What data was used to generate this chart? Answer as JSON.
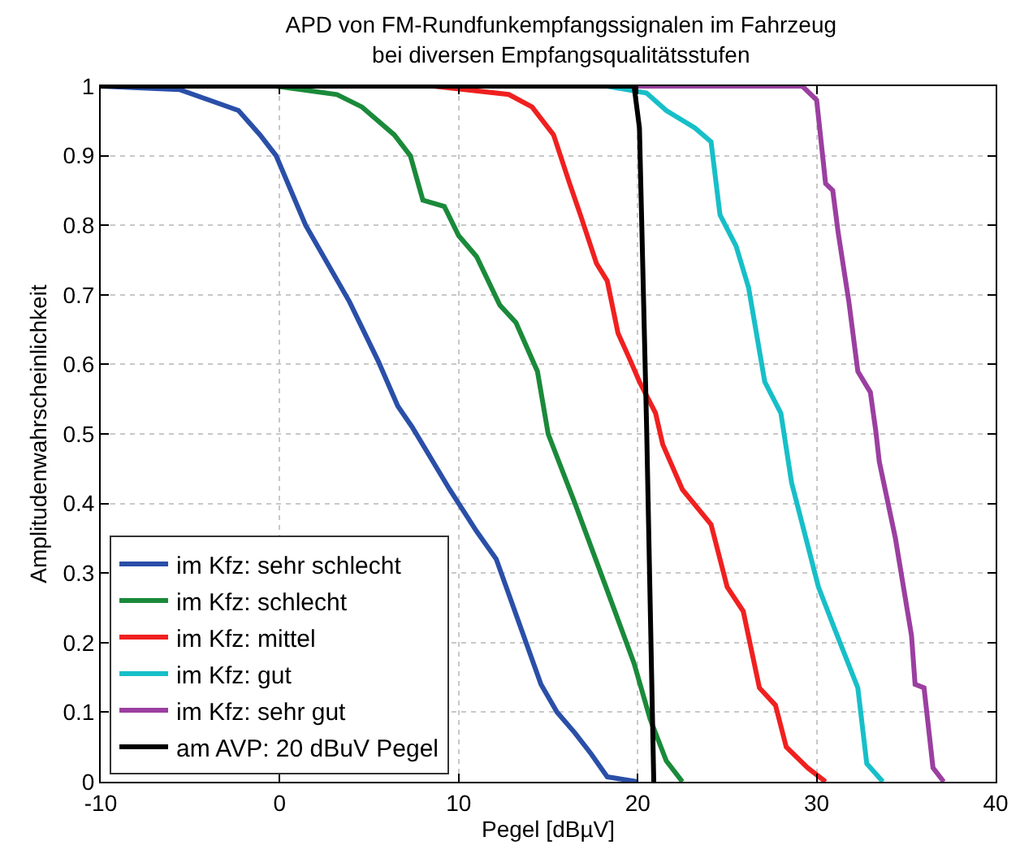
{
  "chart_data": {
    "type": "line",
    "title": "APD von FM-Rundfunkempfangssignalen im Fahrzeug\nbei diversen Empfangsqualitätsstufen",
    "xlabel": "Pegel [dBµV]",
    "ylabel": "Amplitudenwahrscheinlichkeit",
    "xlim": [
      -10,
      40
    ],
    "xticks": [
      -10,
      0,
      10,
      20,
      30,
      40
    ],
    "ylim": [
      0,
      1
    ],
    "yticks": [
      0,
      0.1,
      0.2,
      0.3,
      0.4,
      0.5,
      0.6,
      0.7,
      0.8,
      0.9,
      1
    ],
    "grid": true,
    "legend": "bottom left",
    "line_style": "solid",
    "marker": "none",
    "series": [
      {
        "name": "im Kfz: sehr schlecht",
        "color": "#2a4fa8",
        "x": [
          -10,
          -5.6,
          -2.3,
          -1.1,
          -0.2,
          1.45,
          3.9,
          5.5,
          6.6,
          7.4,
          9.5,
          11.0,
          12.1,
          14.6,
          15.5,
          16.5,
          17.4,
          18.3,
          20
        ],
        "values": [
          1,
          0.995,
          0.965,
          0.93,
          0.9,
          0.8,
          0.69,
          0.605,
          0.54,
          0.51,
          0.42,
          0.36,
          0.32,
          0.14,
          0.1,
          0.07,
          0.04,
          0.007,
          0
        ]
      },
      {
        "name": "im Kfz: schlecht",
        "color": "#1a8a3a",
        "x": [
          -10,
          -0.2,
          3.2,
          4.6,
          6.4,
          7.3,
          8.0,
          9.2,
          10.0,
          11.0,
          12.3,
          13.2,
          14.4,
          15.0,
          16.5,
          18.3,
          19.8,
          20.7,
          21.6,
          22.5
        ],
        "values": [
          1,
          1,
          0.988,
          0.97,
          0.93,
          0.9,
          0.836,
          0.827,
          0.785,
          0.755,
          0.685,
          0.66,
          0.59,
          0.5,
          0.4,
          0.275,
          0.17,
          0.09,
          0.03,
          0
        ]
      },
      {
        "name": "im Kfz: mittel",
        "color": "#f02020",
        "x": [
          -10,
          8.6,
          12.8,
          14.1,
          15.3,
          16.2,
          16.8,
          17.7,
          18.3,
          18.9,
          19.6,
          20.1,
          21.0,
          21.4,
          22.5,
          24.1,
          25.0,
          25.9,
          26.8,
          27.7,
          28.3,
          29.5,
          30.5
        ],
        "values": [
          1,
          1,
          0.988,
          0.97,
          0.93,
          0.86,
          0.815,
          0.745,
          0.72,
          0.645,
          0.605,
          0.575,
          0.53,
          0.485,
          0.42,
          0.37,
          0.28,
          0.245,
          0.135,
          0.11,
          0.05,
          0.02,
          0
        ]
      },
      {
        "name": "im Kfz: gut",
        "color": "#17bfc8",
        "x": [
          -10,
          18.3,
          20.5,
          21.6,
          23.2,
          24.1,
          24.6,
          25.5,
          26.2,
          27.1,
          28.0,
          28.6,
          29.2,
          30.1,
          31.0,
          32.3,
          32.8,
          33.7
        ],
        "values": [
          1,
          1,
          0.99,
          0.965,
          0.94,
          0.92,
          0.815,
          0.77,
          0.71,
          0.575,
          0.53,
          0.43,
          0.37,
          0.28,
          0.22,
          0.135,
          0.026,
          0
        ]
      },
      {
        "name": "im Kfz: sehr gut",
        "color": "#9b3fa0",
        "x": [
          -10,
          29.2,
          30.0,
          30.5,
          30.9,
          31.2,
          31.8,
          32.3,
          33.0,
          33.3,
          33.5,
          34.4,
          35.3,
          35.5,
          36.0,
          36.5,
          37.1
        ],
        "values": [
          1,
          1,
          0.98,
          0.86,
          0.85,
          0.79,
          0.69,
          0.59,
          0.56,
          0.505,
          0.46,
          0.35,
          0.21,
          0.14,
          0.135,
          0.02,
          0
        ]
      },
      {
        "name": "am AVP: 20 dBuV Pegel",
        "color": "#000000",
        "x": [
          -10,
          19.8,
          20.1,
          20.5,
          20.9
        ],
        "values": [
          1,
          1,
          0.94,
          0.51,
          0
        ]
      }
    ]
  }
}
